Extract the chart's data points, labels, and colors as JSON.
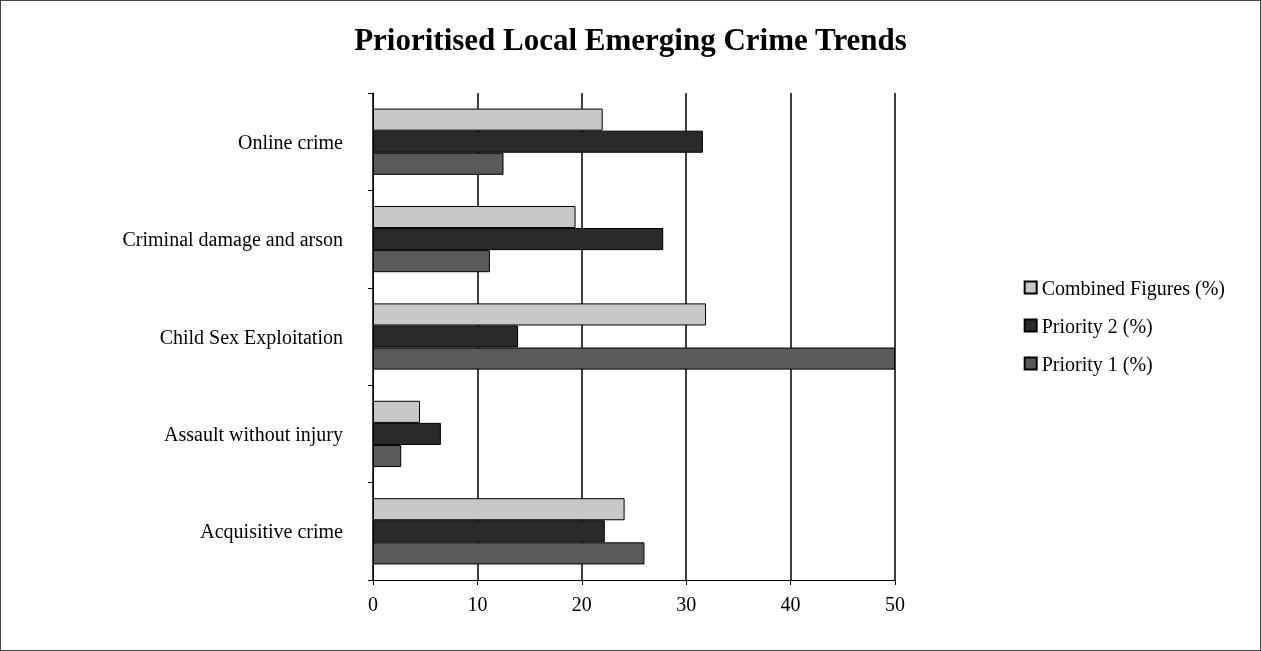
{
  "chart_data": {
    "type": "bar",
    "orientation": "horizontal",
    "title": "Prioritised Local Emerging Crime Trends",
    "categories": [
      "Online crime",
      "Criminal damage and arson",
      "Child Sex Exploitation",
      "Assault without injury",
      "Acquisitive crime"
    ],
    "series": [
      {
        "name": "Combined Figures (%)",
        "color": "#c8c8c8",
        "values": [
          22,
          19.4,
          31.9,
          4.5,
          24.1
        ]
      },
      {
        "name": "Priority 2 (%)",
        "color": "#2a2a2a",
        "values": [
          31.6,
          27.8,
          13.9,
          6.5,
          22.2
        ]
      },
      {
        "name": "Priority 1 (%)",
        "color": "#5a5a5a",
        "values": [
          12.5,
          11.2,
          50,
          2.7,
          26
        ]
      }
    ],
    "xlim": [
      0,
      50
    ],
    "xticks": [
      0,
      10,
      20,
      30,
      40,
      50
    ],
    "grid": "x",
    "legend": "right"
  }
}
